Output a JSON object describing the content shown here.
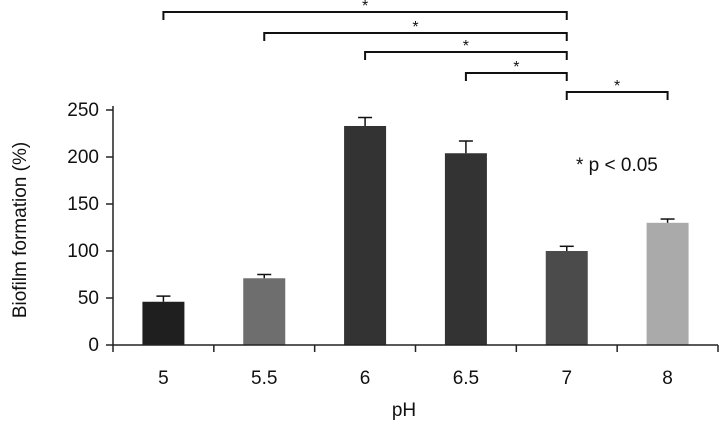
{
  "chart_data": {
    "type": "bar",
    "categories": [
      "5",
      "5.5",
      "6",
      "6.5",
      "7",
      "8"
    ],
    "values": [
      46,
      71,
      233,
      204,
      100,
      130
    ],
    "errors": [
      6,
      4,
      9,
      13,
      5,
      4
    ],
    "colors": [
      "#1f1f1f",
      "#6e6e6e",
      "#333333",
      "#333333",
      "#4b4b4b",
      "#aaaaaa"
    ],
    "title": "",
    "xlabel": "pH",
    "ylabel": "Biofilm formation (%)",
    "ylim": [
      0,
      250
    ],
    "yticks": [
      0,
      50,
      100,
      150,
      200,
      250
    ],
    "grid": false,
    "legend": "none",
    "annotation": "* p < 0.05",
    "significance": [
      {
        "from": "5",
        "to": "7",
        "label": "*"
      },
      {
        "from": "5.5",
        "to": "7",
        "label": "*"
      },
      {
        "from": "6",
        "to": "7",
        "label": "*"
      },
      {
        "from": "6.5",
        "to": "7",
        "label": "*"
      },
      {
        "from": "7",
        "to": "8",
        "label": "*"
      }
    ]
  }
}
